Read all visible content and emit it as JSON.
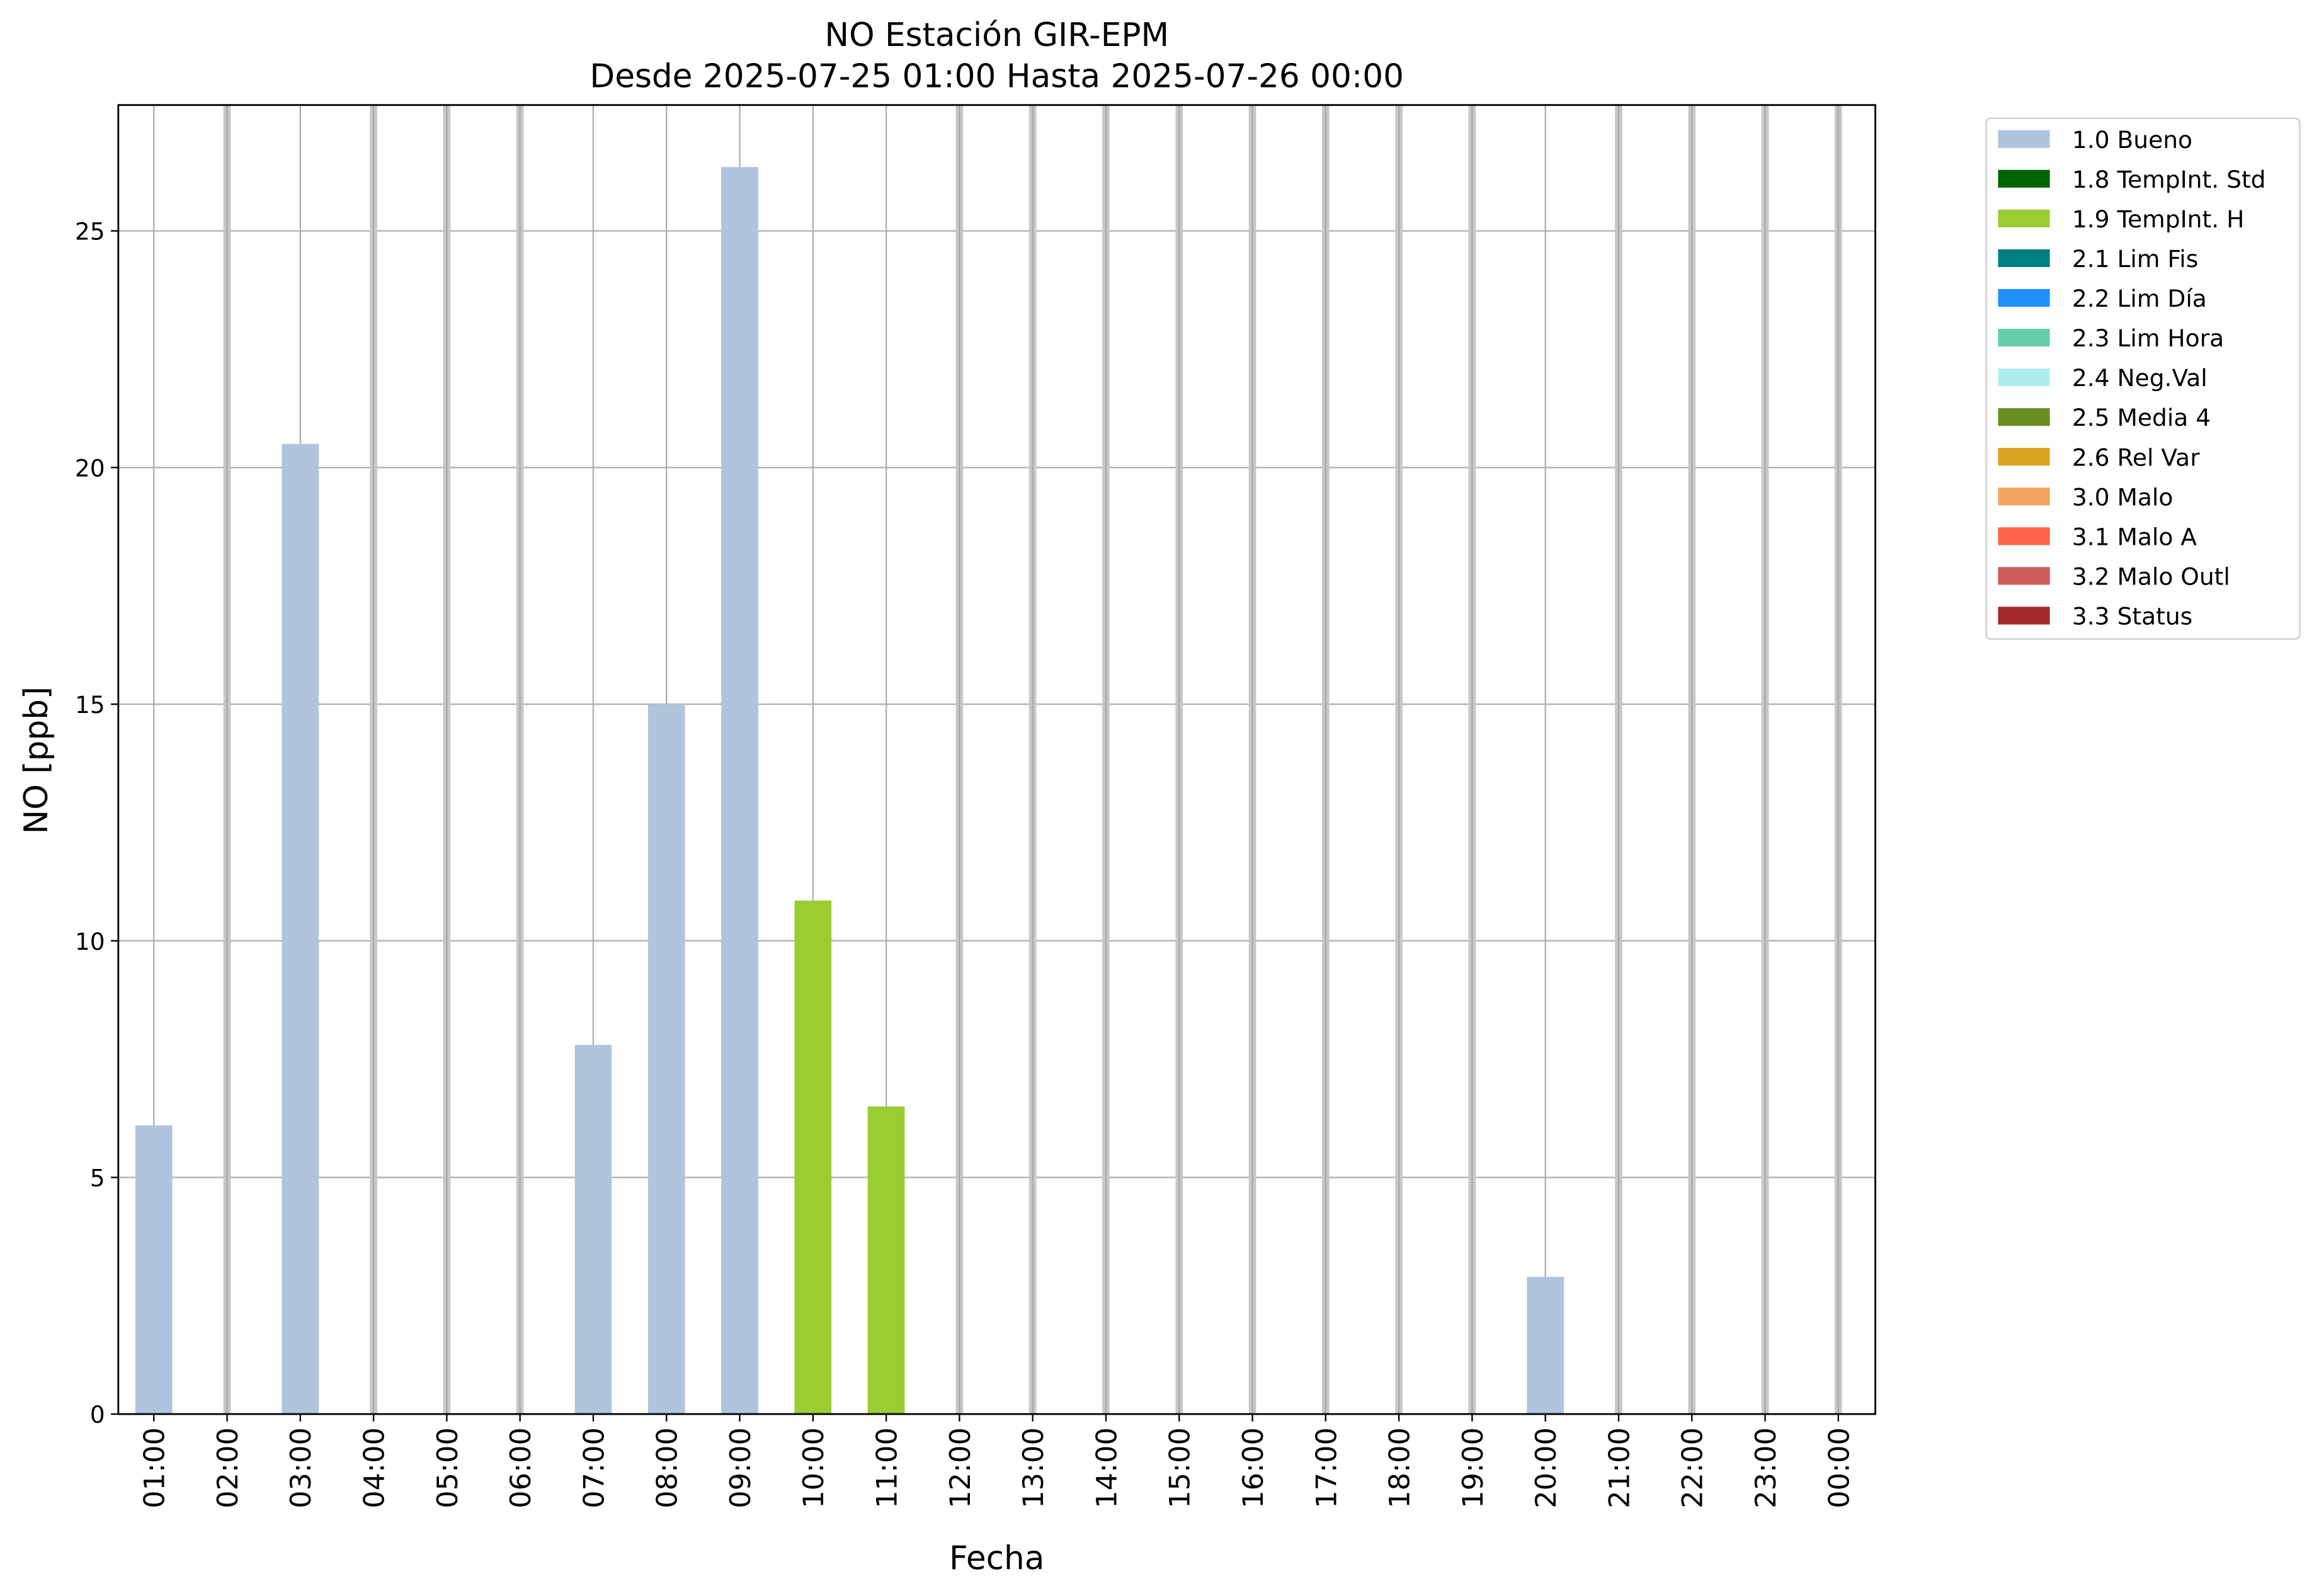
{
  "chart_data": {
    "type": "bar",
    "title": "NO Estación GIR-EPM",
    "subtitle": "Desde 2025-07-25 01:00 Hasta 2025-07-26 00:00",
    "x_label": "Fecha",
    "y_label": "NO [ppb]",
    "categories": [
      "01:00",
      "02:00",
      "03:00",
      "04:00",
      "05:00",
      "06:00",
      "07:00",
      "08:00",
      "09:00",
      "10:00",
      "11:00",
      "12:00",
      "13:00",
      "14:00",
      "15:00",
      "16:00",
      "17:00",
      "18:00",
      "19:00",
      "20:00",
      "21:00",
      "22:00",
      "23:00",
      "00:00"
    ],
    "series": [
      {
        "name": "1.0 Bueno",
        "color": "#b0c4de",
        "values": [
          6.1,
          null,
          20.5,
          null,
          null,
          null,
          7.8,
          15.0,
          26.35,
          null,
          null,
          null,
          null,
          null,
          null,
          null,
          null,
          null,
          null,
          2.9,
          null,
          null,
          null,
          null
        ]
      },
      {
        "name": "1.8 TempInt. Std",
        "color": "#006400",
        "values": [
          null,
          null,
          null,
          null,
          null,
          null,
          null,
          null,
          null,
          null,
          null,
          null,
          null,
          null,
          null,
          null,
          null,
          null,
          null,
          null,
          null,
          null,
          null,
          null
        ]
      },
      {
        "name": "1.9 TempInt. H",
        "color": "#9acd32",
        "values": [
          null,
          null,
          null,
          null,
          null,
          null,
          null,
          null,
          null,
          10.85,
          6.5,
          null,
          null,
          null,
          null,
          null,
          null,
          null,
          null,
          null,
          null,
          null,
          null,
          null
        ]
      },
      {
        "name": "2.1 Lim Fis",
        "color": "#008080",
        "values": [
          null,
          null,
          null,
          null,
          null,
          null,
          null,
          null,
          null,
          null,
          null,
          null,
          null,
          null,
          null,
          null,
          null,
          null,
          null,
          null,
          null,
          null,
          null,
          null
        ]
      },
      {
        "name": "2.2 Lim Día",
        "color": "#1e90ff",
        "values": [
          null,
          null,
          null,
          null,
          null,
          null,
          null,
          null,
          null,
          null,
          null,
          null,
          null,
          null,
          null,
          null,
          null,
          null,
          null,
          null,
          null,
          null,
          null,
          null
        ]
      },
      {
        "name": "2.3 Lim Hora",
        "color": "#66cdaa",
        "values": [
          null,
          null,
          null,
          null,
          null,
          null,
          null,
          null,
          null,
          null,
          null,
          null,
          null,
          null,
          null,
          null,
          null,
          null,
          null,
          null,
          null,
          null,
          null,
          null
        ]
      },
      {
        "name": "2.4 Neg.Val",
        "color": "#afeeee",
        "values": [
          null,
          null,
          null,
          null,
          null,
          null,
          null,
          null,
          null,
          null,
          null,
          null,
          null,
          null,
          null,
          null,
          null,
          null,
          null,
          null,
          null,
          null,
          null,
          null
        ]
      },
      {
        "name": "2.5 Media 4",
        "color": "#6b8e23",
        "values": [
          null,
          null,
          null,
          null,
          null,
          null,
          null,
          null,
          null,
          null,
          null,
          null,
          null,
          null,
          null,
          null,
          null,
          null,
          null,
          null,
          null,
          null,
          null,
          null
        ]
      },
      {
        "name": "2.6 Rel Var",
        "color": "#daa520",
        "values": [
          null,
          null,
          null,
          null,
          null,
          null,
          null,
          null,
          null,
          null,
          null,
          null,
          null,
          null,
          null,
          null,
          null,
          null,
          null,
          null,
          null,
          null,
          null,
          null
        ]
      },
      {
        "name": "3.0 Malo",
        "color": "#f4a460",
        "values": [
          null,
          null,
          null,
          null,
          null,
          null,
          null,
          null,
          null,
          null,
          null,
          null,
          null,
          null,
          null,
          null,
          null,
          null,
          null,
          null,
          null,
          null,
          null,
          null
        ]
      },
      {
        "name": "3.1 Malo A",
        "color": "#ff6347",
        "values": [
          null,
          null,
          null,
          null,
          null,
          null,
          null,
          null,
          null,
          null,
          null,
          null,
          null,
          null,
          null,
          null,
          null,
          null,
          null,
          null,
          null,
          null,
          null,
          null
        ]
      },
      {
        "name": "3.2 Malo Outl",
        "color": "#cd5c5c",
        "values": [
          null,
          null,
          null,
          null,
          null,
          null,
          null,
          null,
          null,
          null,
          null,
          null,
          null,
          null,
          null,
          null,
          null,
          null,
          null,
          null,
          null,
          null,
          null,
          null
        ]
      },
      {
        "name": "3.3 Status",
        "color": "#a52a2a",
        "values": [
          null,
          null,
          null,
          null,
          null,
          null,
          null,
          null,
          null,
          null,
          null,
          null,
          null,
          null,
          null,
          null,
          null,
          null,
          null,
          null,
          null,
          null,
          null,
          null
        ]
      }
    ],
    "ylim": [
      0,
      27.66
    ],
    "yticks": [
      0,
      5,
      10,
      15,
      20,
      25
    ],
    "grid": true,
    "legend": "outside upper right"
  }
}
